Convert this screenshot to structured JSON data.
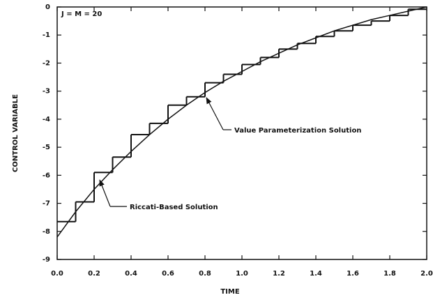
{
  "chart_data": {
    "type": "line",
    "x_label": "TIME",
    "y_label": "CONTROL VARIABLE",
    "annotations": [
      "J = M = 20"
    ],
    "xlim": [
      0,
      2.0
    ],
    "xticks": [
      {
        "value": 0,
        "label": "0.0"
      },
      0.2,
      0.4,
      0.6,
      0.8,
      {
        "value": 1,
        "label": "1.0"
      },
      1.2,
      1.4,
      1.6,
      1.8,
      {
        "value": 2,
        "label": "2.0"
      }
    ],
    "ylim": [
      -9,
      0
    ],
    "yticks": [
      0,
      -1,
      -2,
      -3,
      -4,
      -5,
      -6,
      -7,
      -8,
      -9
    ],
    "series": [
      {
        "name": "Riccati-Based Solution",
        "color": "#111111",
        "x": [
          0,
          0.1,
          0.2,
          0.3,
          0.4,
          0.5,
          0.6,
          0.7,
          0.8,
          0.9,
          1.0,
          1.1,
          1.2,
          1.3,
          1.4,
          1.5,
          1.6,
          1.7,
          1.8,
          1.9,
          2.0
        ],
        "values": [
          -8.2,
          -7.3,
          -6.5,
          -5.8,
          -5.15,
          -4.55,
          -4.0,
          -3.5,
          -3.05,
          -2.65,
          -2.3,
          -1.95,
          -1.65,
          -1.35,
          -1.1,
          -0.85,
          -0.65,
          -0.45,
          -0.3,
          -0.15,
          0
        ]
      },
      {
        "name": "Value Parameterization Solution",
        "color": "#111111",
        "drawstyle": "steps",
        "bins": [
          0,
          0.1,
          0.2,
          0.3,
          0.4,
          0.5,
          0.6,
          0.7,
          0.8,
          0.9,
          1.0,
          1.1,
          1.2,
          1.3,
          1.4,
          1.5,
          1.6,
          1.7,
          1.8,
          1.9,
          2.0
        ],
        "values": [
          -7.65,
          -6.95,
          -5.9,
          -5.35,
          -4.55,
          -4.15,
          -3.5,
          -3.2,
          -2.7,
          -2.4,
          -2.05,
          -1.8,
          -1.5,
          -1.3,
          -1.05,
          -0.85,
          -0.65,
          -0.5,
          -0.3,
          -0.08
        ]
      }
    ]
  }
}
